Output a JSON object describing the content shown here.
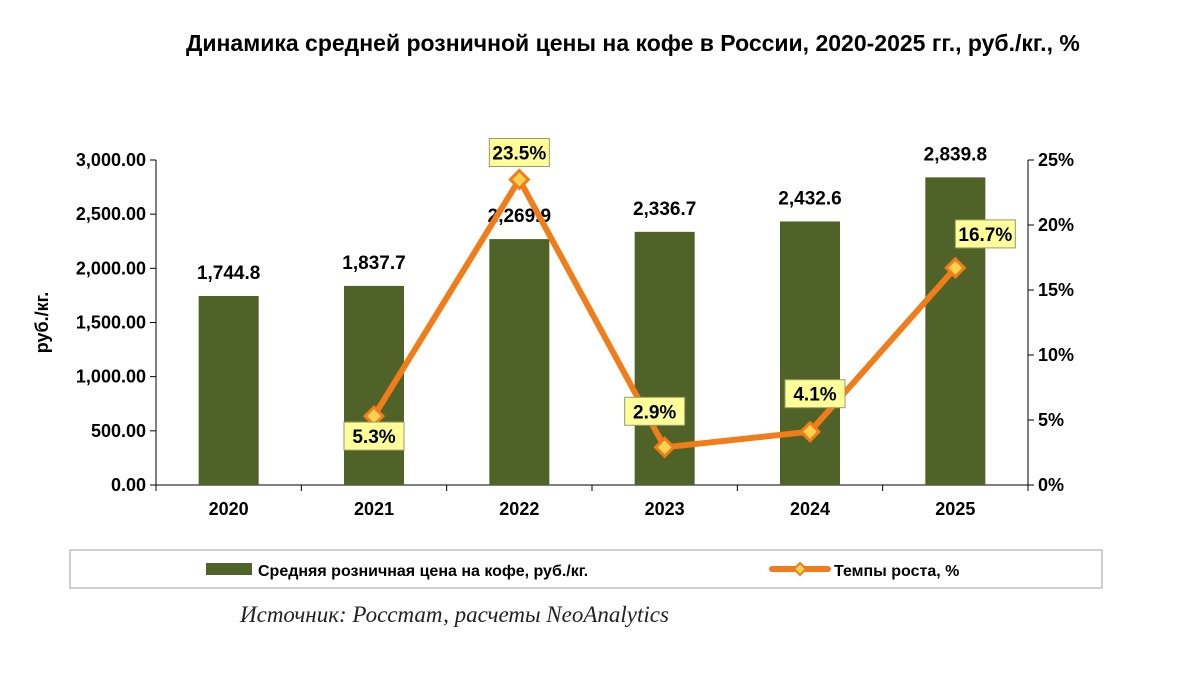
{
  "chart_data": {
    "type": "bar+line",
    "title": "Динамика средней розничной цены на кофе в России, 2020-2025 гг., руб./кг., %",
    "categories": [
      "2020",
      "2021",
      "2022",
      "2023",
      "2024",
      "2025"
    ],
    "series": [
      {
        "name": "Средняя розничная цена на кофе, руб./кг.",
        "type": "bar",
        "axis": "left",
        "values": [
          1744.8,
          1837.7,
          2269.9,
          2336.7,
          2432.6,
          2839.8
        ],
        "labels": [
          "1,744.8",
          "1,837.7",
          "2,269.9",
          "2,336.7",
          "2,432.6",
          "2,839.8"
        ],
        "color": "#4f6228"
      },
      {
        "name": "Темпы роста, %",
        "type": "line",
        "axis": "right",
        "values": [
          null,
          5.3,
          23.5,
          2.9,
          4.1,
          16.7
        ],
        "labels": [
          null,
          "5.3%",
          "23.5%",
          "2.9%",
          "4.1%",
          "16.7%"
        ],
        "color": "#f07c1a",
        "marker_color": "#ffd24d",
        "label_box_color": "#ffff99"
      }
    ],
    "ylabel": "руб./кг.",
    "ylim": [
      0,
      3000
    ],
    "yticks": [
      "3,000.00",
      "2,500.00",
      "2,000.00",
      "1,500.00",
      "1,000.00",
      "500.00",
      "0.00"
    ],
    "y2lim": [
      0,
      25
    ],
    "y2ticks": [
      "25%",
      "20%",
      "15%",
      "10%",
      "5%",
      "0%"
    ],
    "legend_position": "bottom",
    "grid": false
  },
  "source": "Источник: Росстат, расчеты NeoAnalytics"
}
